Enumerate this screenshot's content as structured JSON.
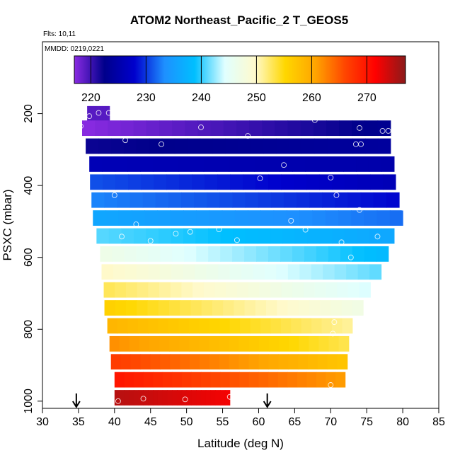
{
  "chart_data": {
    "type": "heatmap",
    "title": "ATOM2 Northeast_Pacific_2 T_GEOS5",
    "annotations": [
      "Flts: 10,11",
      "MMDD: 0219,0221"
    ],
    "xlabel": "Latitude (deg N)",
    "ylabel": "PSXC (mbar)",
    "xlim": [
      30,
      85
    ],
    "ylim": [
      1020,
      0
    ],
    "x_ticks": [
      30,
      35,
      40,
      45,
      50,
      55,
      60,
      65,
      70,
      75,
      80,
      85
    ],
    "y_ticks": [
      200,
      400,
      600,
      800,
      1000
    ],
    "colorbar": {
      "range": [
        217,
        277
      ],
      "ticks": [
        220,
        230,
        240,
        250,
        260,
        270
      ],
      "colors": [
        "#8a2be2",
        "#00008b",
        "#0000cd",
        "#1e90ff",
        "#00bfff",
        "#e0ffff",
        "#fffacd",
        "#ffd700",
        "#ffa500",
        "#ff4500",
        "#ff0000",
        "#8b1a1a"
      ]
    },
    "rows": [
      {
        "p": 200,
        "lat": [
          36.2,
          39.3
        ],
        "t": [
          219,
          219
        ]
      },
      {
        "p": 240,
        "lat": [
          35.5,
          78.3
        ],
        "t": [
          217,
          223
        ]
      },
      {
        "p": 290,
        "lat": [
          36.0,
          78.3
        ],
        "t": [
          222,
          224
        ]
      },
      {
        "p": 340,
        "lat": [
          36.5,
          78.8
        ],
        "t": [
          226,
          225
        ]
      },
      {
        "p": 390,
        "lat": [
          36.6,
          79.0
        ],
        "t": [
          231,
          226
        ]
      },
      {
        "p": 440,
        "lat": [
          36.8,
          79.5
        ],
        "t": [
          233,
          228
        ]
      },
      {
        "p": 490,
        "lat": [
          37.0,
          80.0
        ],
        "t": [
          236,
          232
        ]
      },
      {
        "p": 540,
        "lat": [
          37.5,
          78.8
        ],
        "t": [
          241,
          236
        ]
      },
      {
        "p": 590,
        "lat": [
          38.0,
          78.0
        ],
        "t": [
          247,
          238
        ]
      },
      {
        "p": 640,
        "lat": [
          38.2,
          77.0
        ],
        "t": [
          250,
          241
        ]
      },
      {
        "p": 690,
        "lat": [
          38.5,
          75.5
        ],
        "t": [
          253,
          244
        ]
      },
      {
        "p": 740,
        "lat": [
          38.6,
          74.5
        ],
        "t": [
          256,
          247
        ]
      },
      {
        "p": 790,
        "lat": [
          39.0,
          73.0
        ],
        "t": [
          259,
          251
        ]
      },
      {
        "p": 840,
        "lat": [
          39.3,
          72.5
        ],
        "t": [
          262,
          253
        ]
      },
      {
        "p": 890,
        "lat": [
          39.5,
          72.3
        ],
        "t": [
          267,
          257
        ]
      },
      {
        "p": 940,
        "lat": [
          40.0,
          72.0
        ],
        "t": [
          270,
          261
        ]
      },
      {
        "p": 990,
        "lat": [
          40.0,
          56.0
        ],
        "t": [
          275,
          272
        ]
      }
    ],
    "points": [
      {
        "x": 35.3,
        "y": 235
      },
      {
        "x": 36.5,
        "y": 207
      },
      {
        "x": 37.8,
        "y": 198
      },
      {
        "x": 39.2,
        "y": 198
      },
      {
        "x": 52.0,
        "y": 238
      },
      {
        "x": 58.5,
        "y": 262
      },
      {
        "x": 67.8,
        "y": 218
      },
      {
        "x": 74.0,
        "y": 240
      },
      {
        "x": 77.2,
        "y": 248
      },
      {
        "x": 78.0,
        "y": 248
      },
      {
        "x": 41.5,
        "y": 274
      },
      {
        "x": 46.5,
        "y": 285
      },
      {
        "x": 73.5,
        "y": 285
      },
      {
        "x": 74.2,
        "y": 285
      },
      {
        "x": 63.5,
        "y": 343
      },
      {
        "x": 60.2,
        "y": 380
      },
      {
        "x": 70.0,
        "y": 378
      },
      {
        "x": 40.0,
        "y": 427
      },
      {
        "x": 70.8,
        "y": 427
      },
      {
        "x": 74.0,
        "y": 468
      },
      {
        "x": 80.0,
        "y": 462
      },
      {
        "x": 64.5,
        "y": 498
      },
      {
        "x": 43.0,
        "y": 508
      },
      {
        "x": 66.5,
        "y": 523
      },
      {
        "x": 54.5,
        "y": 522
      },
      {
        "x": 50.5,
        "y": 529
      },
      {
        "x": 48.5,
        "y": 534
      },
      {
        "x": 41.0,
        "y": 542
      },
      {
        "x": 45.0,
        "y": 554
      },
      {
        "x": 57.0,
        "y": 552
      },
      {
        "x": 71.5,
        "y": 558
      },
      {
        "x": 76.5,
        "y": 542
      },
      {
        "x": 72.8,
        "y": 600
      },
      {
        "x": 70.5,
        "y": 780
      },
      {
        "x": 70.3,
        "y": 812
      },
      {
        "x": 70.0,
        "y": 955
      },
      {
        "x": 40.5,
        "y": 1000
      },
      {
        "x": 44.0,
        "y": 993
      },
      {
        "x": 49.8,
        "y": 995
      },
      {
        "x": 56.0,
        "y": 988
      }
    ],
    "arrows": [
      34.7,
      61.2
    ],
    "grid": false
  }
}
